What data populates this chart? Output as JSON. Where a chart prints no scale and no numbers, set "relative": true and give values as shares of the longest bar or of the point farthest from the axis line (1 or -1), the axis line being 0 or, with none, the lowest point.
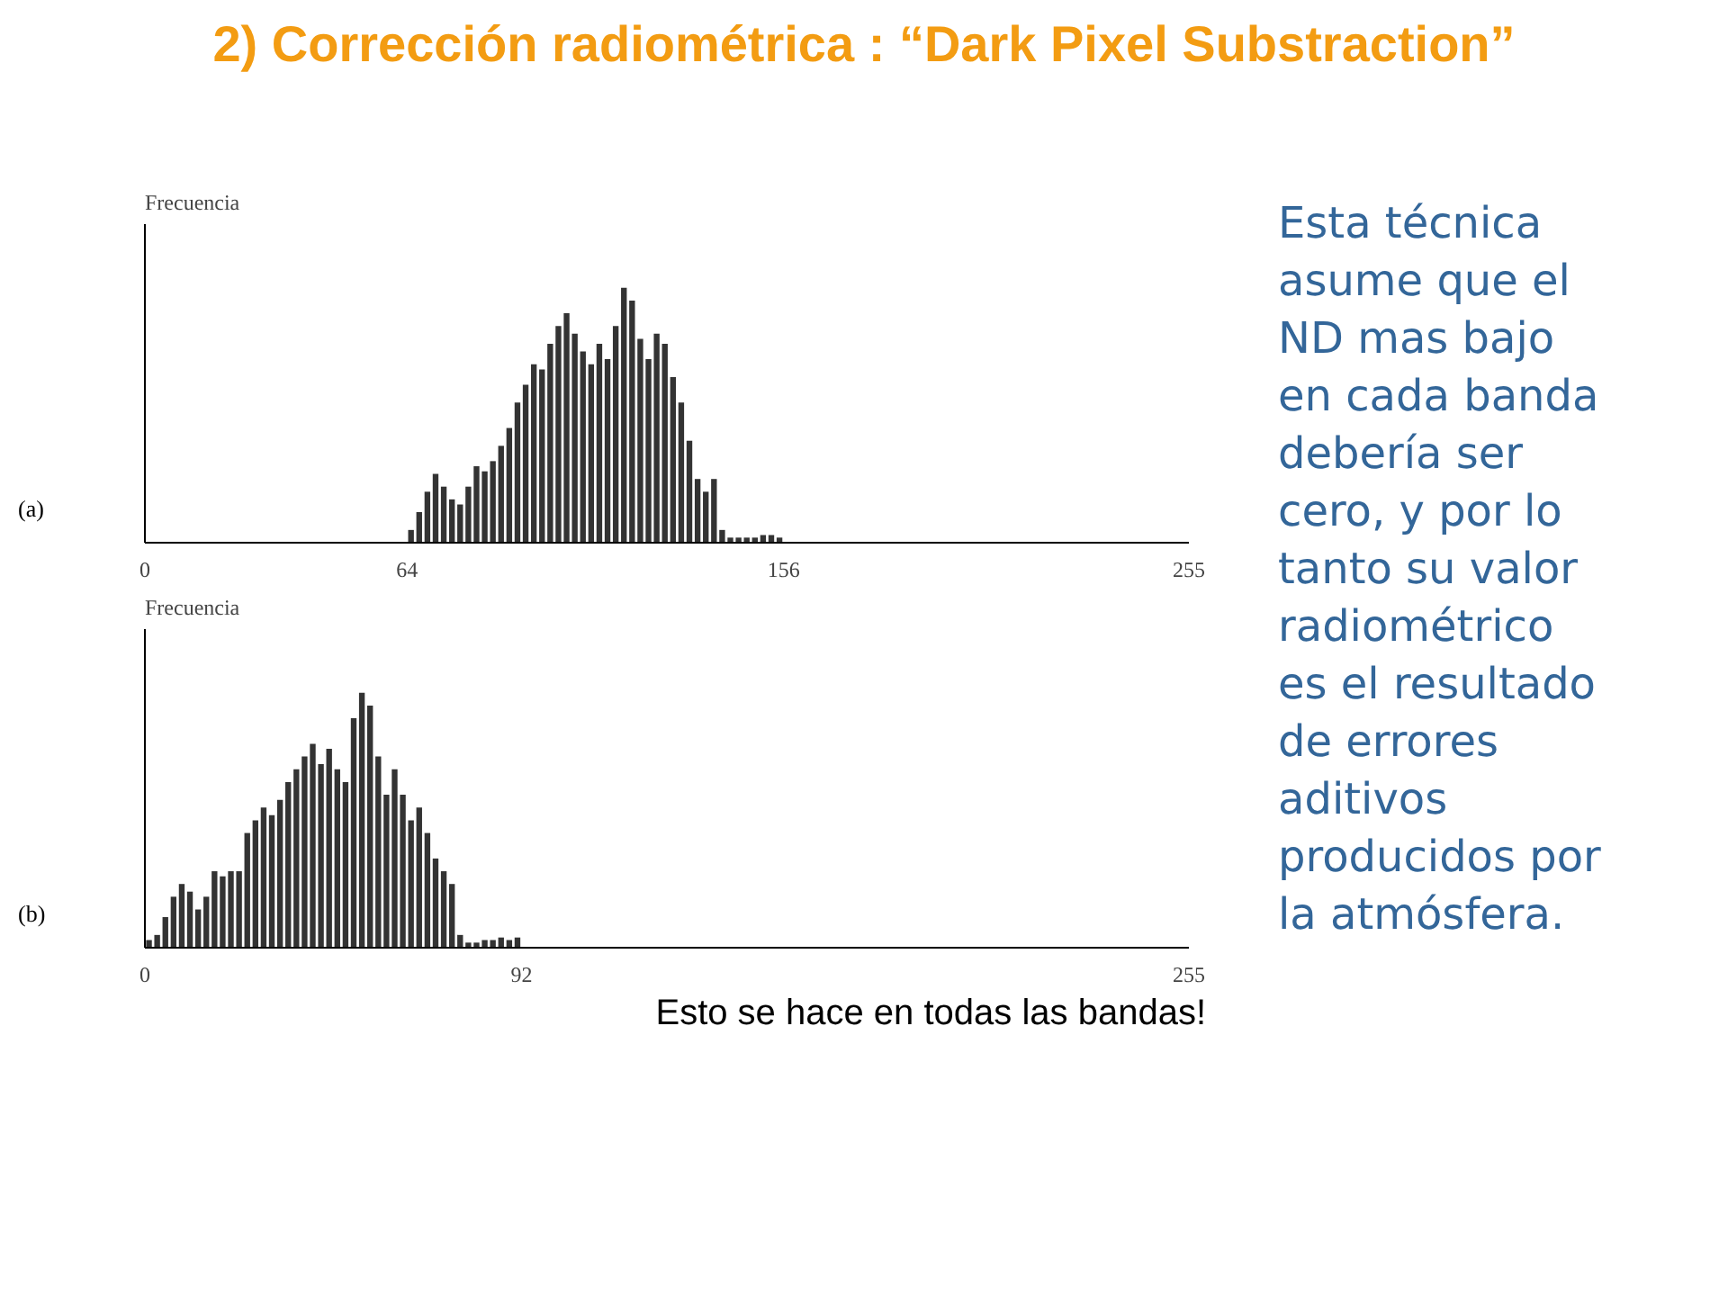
{
  "chart_data": [
    {
      "type": "bar",
      "title": "2) Corrección radiométrica : “Dark Pixel Substraction”",
      "ylabel": "Frecuencia",
      "relative": true,
      "color": "#333333",
      "xlim": [
        0,
        255
      ],
      "xticks": [
        0,
        64,
        156,
        255
      ],
      "grid": false,
      "annotations": [
        "(a)"
      ],
      "x": [
        65,
        67,
        69,
        71,
        73,
        75,
        77,
        79,
        81,
        83,
        85,
        87,
        89,
        91,
        93,
        95,
        97,
        99,
        101,
        103,
        105,
        107,
        109,
        111,
        113,
        115,
        117,
        119,
        121,
        123,
        125,
        127,
        129,
        131,
        133,
        135,
        137,
        139,
        141,
        143,
        145,
        147,
        149,
        151,
        153,
        155
      ],
      "values": [
        0.05,
        0.12,
        0.2,
        0.27,
        0.22,
        0.17,
        0.15,
        0.22,
        0.3,
        0.28,
        0.32,
        0.38,
        0.45,
        0.55,
        0.62,
        0.7,
        0.68,
        0.78,
        0.85,
        0.9,
        0.82,
        0.75,
        0.7,
        0.78,
        0.72,
        0.85,
        1.0,
        0.95,
        0.8,
        0.72,
        0.82,
        0.78,
        0.65,
        0.55,
        0.4,
        0.25,
        0.2,
        0.25,
        0.05,
        0.02,
        0.02,
        0.02,
        0.02,
        0.03,
        0.03,
        0.02
      ]
    },
    {
      "type": "bar",
      "ylabel": "Frecuencia",
      "relative": true,
      "color": "#333333",
      "xlim": [
        0,
        255
      ],
      "xticks": [
        0,
        92,
        255
      ],
      "grid": false,
      "annotations": [
        "(b)"
      ],
      "x": [
        1,
        3,
        5,
        7,
        9,
        11,
        13,
        15,
        17,
        19,
        21,
        23,
        25,
        27,
        29,
        31,
        33,
        35,
        37,
        39,
        41,
        43,
        45,
        47,
        49,
        51,
        53,
        55,
        57,
        59,
        61,
        63,
        65,
        67,
        69,
        71,
        73,
        75,
        77,
        79,
        81,
        83,
        85,
        87,
        89,
        91
      ],
      "values": [
        0.03,
        0.05,
        0.12,
        0.2,
        0.25,
        0.22,
        0.15,
        0.2,
        0.3,
        0.28,
        0.3,
        0.3,
        0.45,
        0.5,
        0.55,
        0.52,
        0.58,
        0.65,
        0.7,
        0.75,
        0.8,
        0.72,
        0.78,
        0.7,
        0.65,
        0.9,
        1.0,
        0.95,
        0.75,
        0.6,
        0.7,
        0.6,
        0.5,
        0.55,
        0.45,
        0.35,
        0.3,
        0.25,
        0.05,
        0.02,
        0.02,
        0.03,
        0.03,
        0.04,
        0.03,
        0.04
      ]
    },
    {
      "type": "other",
      "annotations": [
        "Esta técnica asume que el ND mas bajo en cada banda debería ser cero, y por lo tanto su valor radiométrico es el resultado de errores aditivos producidos por la atmósfera.",
        "Esto se hace en todas las bandas!"
      ]
    }
  ]
}
